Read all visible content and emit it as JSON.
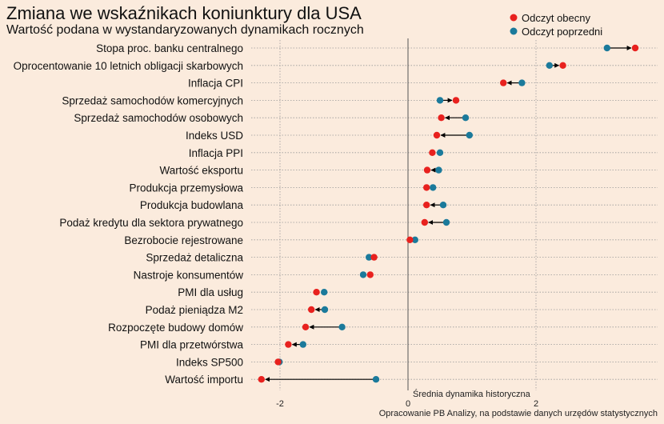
{
  "title": "Zmiana we wskaźnikach koniunktury dla USA",
  "subtitle": "Wartość podana w wystandaryzowanych dynamikach rocznych",
  "reference_line_label": "Średnia dynamika historyczna",
  "caption": "Opracowanie  PB Analizy, na podstawie danych urzędów statystycznych",
  "colors": {
    "current": "#E8211E",
    "previous": "#1B7A9B",
    "background": "#FBEBDD",
    "arrow": "#000000"
  },
  "legend": [
    {
      "key": "current",
      "label": "Odczyt obecny"
    },
    {
      "key": "previous",
      "label": "Odczyt poprzedni"
    }
  ],
  "chart_data": {
    "type": "dumbbell",
    "x_ticks": [
      -2,
      0,
      2
    ],
    "xlim": [
      -2.45,
      3.9
    ],
    "grid": true,
    "legend_position": "top-right",
    "series": [
      {
        "name": "Odczyt obecny",
        "key": "current"
      },
      {
        "name": "Odczyt poprzedni",
        "key": "previous"
      }
    ],
    "rows": [
      {
        "label": "Stopa proc. banku centralnego",
        "current": 3.55,
        "previous": 3.11
      },
      {
        "label": "Oprocentowanie 10 letnich obligacji skarbowych",
        "current": 2.42,
        "previous": 2.21
      },
      {
        "label": "Inflacja CPI",
        "current": 1.49,
        "previous": 1.78
      },
      {
        "label": "Sprzedaż samochodów komercyjnych",
        "current": 0.75,
        "previous": 0.5
      },
      {
        "label": "Sprzedaż samochodów osobowych",
        "current": 0.52,
        "previous": 0.9
      },
      {
        "label": "Indeks USD",
        "current": 0.45,
        "previous": 0.96
      },
      {
        "label": "Inflacja PPI",
        "current": 0.38,
        "previous": 0.5
      },
      {
        "label": "Wartość eksportu",
        "current": 0.3,
        "previous": 0.48
      },
      {
        "label": "Produkcja przemysłowa",
        "current": 0.29,
        "previous": 0.39
      },
      {
        "label": "Produkcja budowlana",
        "current": 0.29,
        "previous": 0.55
      },
      {
        "label": "Podaż kredytu dla sektora prywatnego",
        "current": 0.26,
        "previous": 0.6
      },
      {
        "label": "Bezrobocie rejestrowane",
        "current": 0.03,
        "previous": 0.11
      },
      {
        "label": "Sprzedaż detaliczna",
        "current": -0.53,
        "previous": -0.61
      },
      {
        "label": "Nastroje konsumentów",
        "current": -0.59,
        "previous": -0.7
      },
      {
        "label": "PMI dla usług",
        "current": -1.43,
        "previous": -1.31
      },
      {
        "label": "Podaż pieniądza M2",
        "current": -1.51,
        "previous": -1.3
      },
      {
        "label": "Rozpoczęte budowy domów",
        "current": -1.6,
        "previous": -1.03
      },
      {
        "label": "PMI dla przetwórstwa",
        "current": -1.87,
        "previous": -1.64
      },
      {
        "label": "Indeks SP500",
        "current": -2.03,
        "previous": -2.01
      },
      {
        "label": "Wartość importu",
        "current": -2.29,
        "previous": -0.5
      }
    ]
  }
}
